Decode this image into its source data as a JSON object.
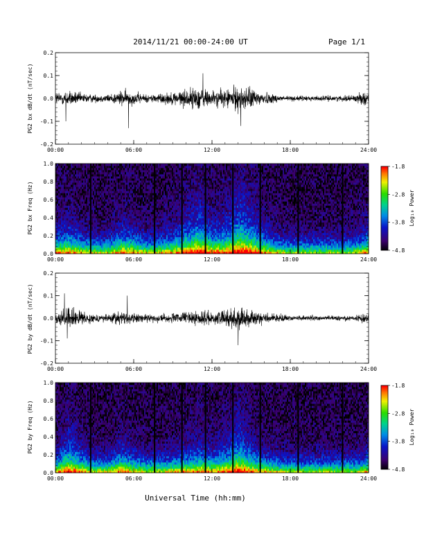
{
  "header": {
    "title": "2014/11/21  00:00-24:00 UT",
    "page": "Page 1/1"
  },
  "xaxis": {
    "label": "Universal Time (hh:mm)",
    "ticks": [
      "00:00",
      "06:00",
      "12:00",
      "18:00",
      "24:00"
    ]
  },
  "colorbar": {
    "label": "Log₁₀ Power",
    "ticks": [
      "-1.8",
      "-2.8",
      "-3.8",
      "-4.8"
    ]
  },
  "chart_data": [
    {
      "type": "line",
      "ylabel": "PG2 bx dB/dt (nT/sec)",
      "xlim": [
        0,
        24
      ],
      "ylim": [
        -0.2,
        0.2
      ],
      "yticks": [
        "0.2",
        "0.1",
        "0.0",
        "-0.1",
        "-0.2"
      ],
      "activity_profile": {
        "hours": [
          0,
          1,
          2,
          3,
          4,
          5,
          6,
          7,
          8,
          9,
          10,
          11,
          12,
          13,
          14,
          15,
          16,
          17,
          18,
          19,
          20,
          21,
          22,
          23,
          24
        ],
        "amplitude": [
          0.05,
          0.06,
          0.04,
          0.03,
          0.03,
          0.06,
          0.05,
          0.03,
          0.04,
          0.05,
          0.07,
          0.09,
          0.06,
          0.07,
          0.1,
          0.08,
          0.05,
          0.03,
          0.02,
          0.02,
          0.02,
          0.02,
          0.02,
          0.03,
          0.06
        ]
      },
      "spikes": [
        {
          "hour": 5.6,
          "value": -0.13
        },
        {
          "hour": 0.8,
          "value": -0.1
        },
        {
          "hour": 14.2,
          "value": -0.12
        },
        {
          "hour": 11.3,
          "value": 0.11
        }
      ]
    },
    {
      "type": "heatmap",
      "ylabel": "PG2 bx Freq (Hz)",
      "xlim": [
        0,
        24
      ],
      "ylim": [
        0.0,
        1.0
      ],
      "yticks": [
        "1.0",
        "0.8",
        "0.6",
        "0.4",
        "0.2",
        "0.0"
      ],
      "zlim": [
        -4.8,
        -1.8
      ],
      "data_gaps_hours": [
        2.7,
        7.6,
        9.7,
        11.5,
        13.6,
        15.7,
        18.6,
        22.0
      ]
    },
    {
      "type": "line",
      "ylabel": "PG2 by dB/dt (nT/sec)",
      "xlim": [
        0,
        24
      ],
      "ylim": [
        -0.2,
        0.2
      ],
      "yticks": [
        "0.2",
        "0.1",
        "0.0",
        "-0.1",
        "-0.2"
      ],
      "activity_profile": {
        "hours": [
          0,
          1,
          2,
          3,
          4,
          5,
          6,
          7,
          8,
          9,
          10,
          11,
          12,
          13,
          14,
          15,
          16,
          17,
          18,
          19,
          20,
          21,
          22,
          23,
          24
        ],
        "amplitude": [
          0.04,
          0.08,
          0.05,
          0.03,
          0.03,
          0.06,
          0.04,
          0.03,
          0.03,
          0.04,
          0.05,
          0.06,
          0.05,
          0.06,
          0.09,
          0.06,
          0.04,
          0.03,
          0.02,
          0.02,
          0.02,
          0.02,
          0.02,
          0.02,
          0.05
        ]
      },
      "spikes": [
        {
          "hour": 0.7,
          "value": 0.11
        },
        {
          "hour": 5.5,
          "value": 0.1
        },
        {
          "hour": 14.0,
          "value": -0.12
        },
        {
          "hour": 0.9,
          "value": -0.09
        }
      ]
    },
    {
      "type": "heatmap",
      "ylabel": "PG2 by Freq (Hz)",
      "xlim": [
        0,
        24
      ],
      "ylim": [
        0.0,
        1.0
      ],
      "yticks": [
        "1.0",
        "0.8",
        "0.6",
        "0.4",
        "0.2",
        "0.0"
      ],
      "zlim": [
        -4.8,
        -1.8
      ],
      "data_gaps_hours": [
        2.7,
        7.6,
        9.7,
        11.5,
        13.6,
        15.7,
        18.6,
        22.0
      ]
    }
  ]
}
